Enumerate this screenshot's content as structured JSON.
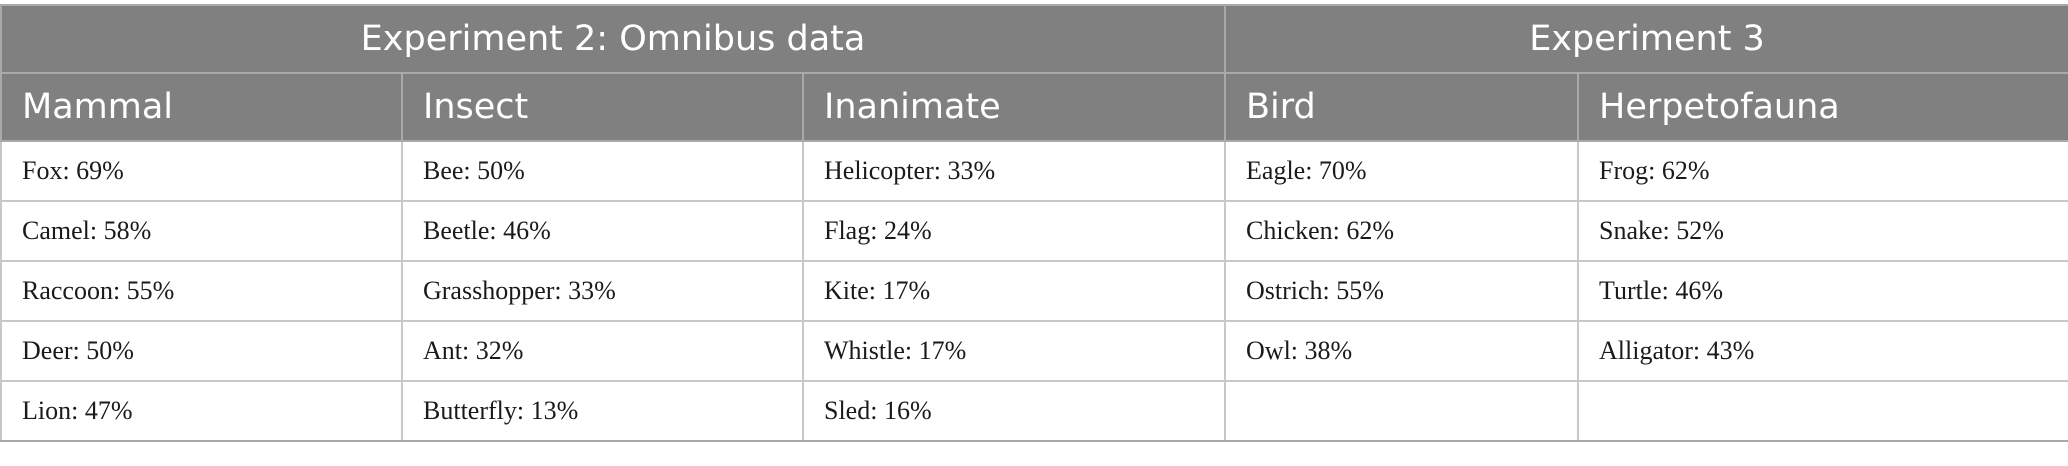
{
  "groups": [
    {
      "label": "Experiment 2: Omnibus data",
      "span": 3
    },
    {
      "label": "Experiment 3",
      "span": 2
    }
  ],
  "columns": [
    "Mammal",
    "Insect",
    "Inanimate",
    "Bird",
    "Herpetofauna"
  ],
  "rows": [
    [
      "Fox: 69%",
      "Bee: 50%",
      "Helicopter: 33%",
      "Eagle: 70%",
      "Frog: 62%"
    ],
    [
      "Camel: 58%",
      "Beetle: 46%",
      "Flag: 24%",
      "Chicken: 62%",
      "Snake: 52%"
    ],
    [
      "Raccoon: 55%",
      "Grasshopper: 33%",
      "Kite: 17%",
      "Ostrich: 55%",
      "Turtle: 46%"
    ],
    [
      "Deer: 50%",
      "Ant: 32%",
      "Whistle: 17%",
      "Owl: 38%",
      "Alligator: 43%"
    ],
    [
      "Lion: 47%",
      "Butterfly: 13%",
      "Sled: 16%",
      "",
      ""
    ]
  ]
}
